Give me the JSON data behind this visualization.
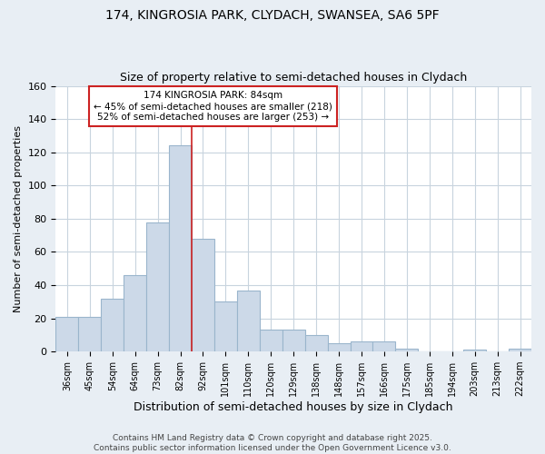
{
  "title": "174, KINGROSIA PARK, CLYDACH, SWANSEA, SA6 5PF",
  "subtitle": "Size of property relative to semi-detached houses in Clydach",
  "xlabel": "Distribution of semi-detached houses by size in Clydach",
  "ylabel": "Number of semi-detached properties",
  "categories": [
    "36sqm",
    "45sqm",
    "54sqm",
    "64sqm",
    "73sqm",
    "82sqm",
    "92sqm",
    "101sqm",
    "110sqm",
    "120sqm",
    "129sqm",
    "138sqm",
    "148sqm",
    "157sqm",
    "166sqm",
    "175sqm",
    "185sqm",
    "194sqm",
    "203sqm",
    "213sqm",
    "222sqm"
  ],
  "values": [
    21,
    21,
    32,
    46,
    78,
    124,
    68,
    30,
    37,
    13,
    13,
    10,
    5,
    6,
    6,
    2,
    0,
    0,
    1,
    0,
    2
  ],
  "bar_color": "#ccd9e8",
  "bar_edge_color": "#9ab5cc",
  "vline_x": 5.5,
  "vline_color": "#cc2222",
  "annotation_line1": "174 KINGROSIA PARK: 84sqm",
  "annotation_line2": "← 45% of semi-detached houses are smaller (218)",
  "annotation_line3": "52% of semi-detached houses are larger (253) →",
  "annotation_box_edge": "#cc2222",
  "ylim": [
    0,
    160
  ],
  "yticks": [
    0,
    20,
    40,
    60,
    80,
    100,
    120,
    140,
    160
  ],
  "footer": "Contains HM Land Registry data © Crown copyright and database right 2025.\nContains public sector information licensed under the Open Government Licence v3.0.",
  "bg_color": "#e8eef4",
  "plot_bg_color": "#ffffff",
  "grid_color": "#c8d4de"
}
